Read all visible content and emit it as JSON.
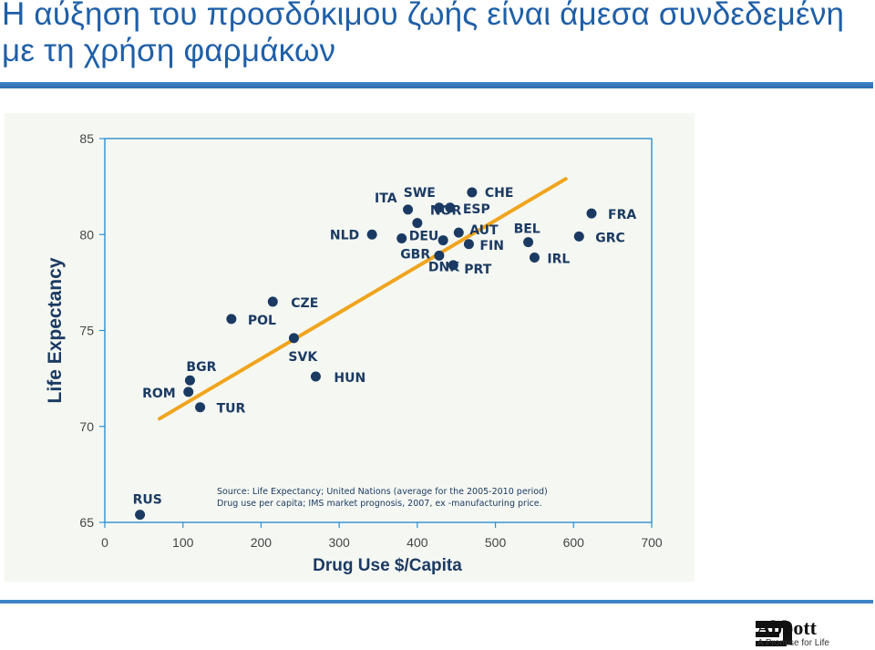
{
  "slide": {
    "title": "Η αύξηση του προσδόκιμου ζωής είναι άμεσα συνδεδεμένη με τη χρήση φαρμάκων"
  },
  "chart_data": {
    "type": "scatter",
    "xlabel": "Drug Use $/Capita",
    "ylabel": "Life Expectancy",
    "xlim": [
      0,
      700
    ],
    "ylim": [
      65,
      85
    ],
    "xticks": [
      0,
      100,
      200,
      300,
      400,
      500,
      600,
      700
    ],
    "yticks": [
      65,
      70,
      75,
      80,
      85
    ],
    "grid": false,
    "colors": {
      "points": "#1b3a63",
      "trend": "#f0a41e",
      "axes": "#2c8fd0"
    },
    "points": [
      {
        "label": "RUS",
        "x": 45,
        "y": 65.4
      },
      {
        "label": "ROM",
        "x": 107,
        "y": 71.8
      },
      {
        "label": "BGR",
        "x": 109,
        "y": 72.4
      },
      {
        "label": "TUR",
        "x": 122,
        "y": 71.0
      },
      {
        "label": "POL",
        "x": 162,
        "y": 75.6
      },
      {
        "label": "CZE",
        "x": 215,
        "y": 76.5
      },
      {
        "label": "SVK",
        "x": 242,
        "y": 74.6
      },
      {
        "label": "HUN",
        "x": 270,
        "y": 72.6
      },
      {
        "label": "NLD",
        "x": 342,
        "y": 80.0
      },
      {
        "label": "ITA",
        "x": 388,
        "y": 81.3
      },
      {
        "label": "DEU",
        "x": 380,
        "y": 79.8
      },
      {
        "label": "NOR",
        "x": 400,
        "y": 80.6
      },
      {
        "label": "SWE",
        "x": 428,
        "y": 81.4
      },
      {
        "label": "ESP",
        "x": 442,
        "y": 81.4
      },
      {
        "label": "GBR",
        "x": 433,
        "y": 79.7
      },
      {
        "label": "AUT",
        "x": 453,
        "y": 80.1
      },
      {
        "label": "DNK",
        "x": 428,
        "y": 78.9
      },
      {
        "label": "PRT",
        "x": 446,
        "y": 78.4
      },
      {
        "label": "FIN",
        "x": 466,
        "y": 79.5
      },
      {
        "label": "CHE",
        "x": 470,
        "y": 82.2
      },
      {
        "label": "BEL",
        "x": 542,
        "y": 79.6
      },
      {
        "label": "IRL",
        "x": 550,
        "y": 78.8
      },
      {
        "label": "GRC",
        "x": 607,
        "y": 79.9
      },
      {
        "label": "FRA",
        "x": 623,
        "y": 81.1
      }
    ],
    "trendline": {
      "x": [
        70,
        590
      ],
      "y": [
        70.4,
        82.9
      ]
    },
    "source": [
      "Source: Life Expectancy; United Nations (average for the 2005-2010 period)",
      "Drug use per capita; IMS market prognosis, 2007, ex -manufacturing price."
    ]
  },
  "logo": {
    "name": "Abbott",
    "tagline": "A Promise for Life"
  }
}
